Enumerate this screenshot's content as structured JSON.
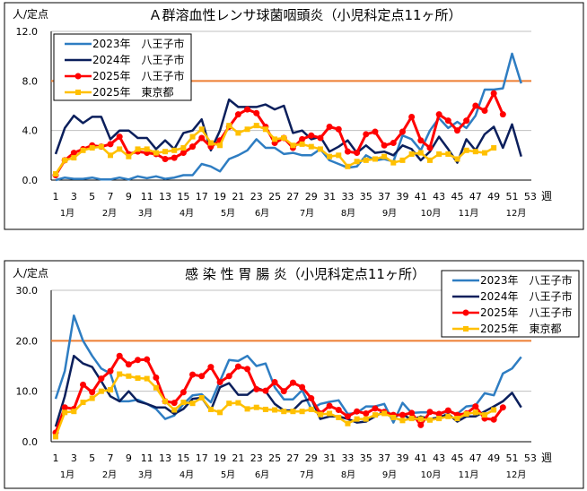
{
  "colors": {
    "s2023": "#2e7dc2",
    "s2024": "#0b1f5c",
    "s2025": "#ff0000",
    "tokyo": "#ffc000",
    "threshold": "#ed7d31",
    "grid": "#c0c0c0"
  },
  "chart_data": [
    {
      "type": "line",
      "title": "Ａ群溶血性レンサ球菌咽頭炎（小児科定点11ヶ所）",
      "ylabel": "人/定点",
      "xlabel": "週",
      "ylim": [
        0,
        12
      ],
      "yticks": [
        "0.0",
        "4.0",
        "8.0",
        "12.0"
      ],
      "xticks": [
        1,
        3,
        5,
        7,
        9,
        11,
        13,
        15,
        17,
        19,
        21,
        23,
        25,
        27,
        29,
        31,
        33,
        35,
        37,
        39,
        41,
        43,
        45,
        47,
        49,
        51,
        53
      ],
      "months": [
        "1月",
        "2月",
        "3月",
        "4月",
        "5月",
        "6月",
        "7月",
        "8月",
        "9月",
        "10月",
        "11月",
        "12月"
      ],
      "threshold": 8.0,
      "grid": true,
      "legend": "top-left",
      "series": [
        {
          "name": "2023年　八王子市",
          "key": "s2023",
          "marker": "none",
          "values": [
            0.0,
            0.2,
            0.1,
            0.1,
            0.2,
            0.05,
            0.05,
            0.2,
            0.05,
            0.3,
            0.15,
            0.3,
            0.1,
            0.2,
            0.4,
            0.4,
            1.3,
            1.1,
            0.7,
            1.7,
            2.0,
            2.4,
            3.3,
            2.6,
            2.6,
            2.1,
            2.2,
            2.0,
            2.0,
            2.5,
            1.6,
            1.3,
            1.0,
            1.1,
            2.0,
            1.6,
            1.7,
            1.5,
            3.6,
            3.3,
            2.4,
            4.0,
            5.0,
            4.2,
            4.7,
            4.2,
            5.2,
            7.3,
            7.3,
            7.4,
            10.2,
            7.8
          ]
        },
        {
          "name": "2024年　八王子市",
          "key": "s2024",
          "marker": "none",
          "values": [
            2.1,
            4.2,
            5.2,
            4.6,
            5.1,
            5.1,
            3.3,
            4.0,
            4.0,
            3.4,
            3.4,
            2.5,
            3.2,
            2.5,
            3.8,
            4.0,
            4.9,
            2.4,
            4.0,
            6.5,
            5.9,
            5.9,
            5.9,
            6.1,
            5.7,
            6.0,
            3.8,
            4.0,
            3.3,
            3.5,
            2.3,
            2.7,
            3.2,
            2.2,
            2.8,
            2.2,
            2.3,
            2.0,
            2.8,
            2.5,
            1.6,
            2.3,
            3.5,
            2.5,
            1.4,
            3.3,
            2.4,
            3.7,
            4.3,
            2.6,
            4.5,
            1.9
          ]
        },
        {
          "name": "2025年　八王子市",
          "key": "s2025",
          "marker": "circle",
          "values": [
            0.4,
            1.6,
            2.2,
            2.5,
            2.8,
            2.7,
            2.9,
            3.5,
            2.1,
            2.3,
            2.2,
            2.1,
            1.7,
            1.8,
            2.2,
            2.7,
            3.4,
            2.7,
            3.2,
            4.3,
            5.3,
            5.7,
            5.4,
            4.3,
            3.0,
            3.4,
            2.6,
            3.3,
            3.6,
            3.4,
            4.3,
            4.1,
            2.3,
            2.2,
            3.7,
            3.9,
            2.8,
            3.0,
            3.9,
            5.1,
            3.2,
            2.6,
            5.3,
            4.8,
            4.0,
            4.8,
            6.0,
            5.6,
            7.0,
            5.3
          ]
        },
        {
          "name": "2025年　東京都",
          "key": "tokyo",
          "marker": "square",
          "values": [
            0.5,
            1.6,
            1.8,
            2.4,
            2.6,
            2.7,
            2.0,
            2.5,
            1.9,
            2.5,
            2.5,
            2.2,
            2.3,
            2.4,
            2.6,
            3.5,
            4.1,
            3.0,
            2.8,
            4.4,
            3.8,
            4.1,
            4.4,
            4.1,
            3.3,
            3.4,
            2.8,
            2.9,
            2.7,
            2.5,
            1.9,
            2.0,
            1.1,
            1.5,
            1.6,
            1.7,
            1.9,
            1.4,
            1.6,
            2.1,
            2.2,
            1.6,
            2.1,
            2.1,
            1.7,
            2.4,
            2.3,
            2.2,
            2.6
          ]
        }
      ]
    },
    {
      "type": "line",
      "title": "感 染 性 胃 腸 炎（小児科定点11ヶ所）",
      "ylabel": "人/定点",
      "xlabel": "週",
      "ylim": [
        0,
        30
      ],
      "yticks": [
        "0.0",
        "10.0",
        "20.0",
        "30.0"
      ],
      "xticks": [
        1,
        3,
        5,
        7,
        9,
        11,
        13,
        15,
        17,
        19,
        21,
        23,
        25,
        27,
        29,
        31,
        33,
        35,
        37,
        39,
        41,
        43,
        45,
        47,
        49,
        51,
        53
      ],
      "months": [
        "1月",
        "2月",
        "3月",
        "4月",
        "5月",
        "6月",
        "7月",
        "8月",
        "9月",
        "10月",
        "11月",
        "12月"
      ],
      "threshold": 20.0,
      "grid": true,
      "legend": "top-right",
      "series": [
        {
          "name": "2023年　八王子市",
          "key": "s2023",
          "marker": "none",
          "values": [
            8.5,
            14,
            25,
            20,
            17,
            14.5,
            13.5,
            8,
            8,
            8.3,
            7.5,
            6.5,
            4.5,
            5.2,
            7.5,
            9.2,
            9.4,
            7.8,
            12,
            16.2,
            16,
            17,
            15,
            15.5,
            10.8,
            8.4,
            8.4,
            10.2,
            6.5,
            7.5,
            7.9,
            8.2,
            5.5,
            5.7,
            7.0,
            7.0,
            7.5,
            3.8,
            7.7,
            5.7,
            5.8,
            5.8,
            5.5,
            6.0,
            5.5,
            7.0,
            7.2,
            9.6,
            9.2,
            13.5,
            14.5,
            16.8
          ]
        },
        {
          "name": "2024年　八王子市",
          "key": "s2024",
          "marker": "none",
          "values": [
            3,
            9,
            17,
            15.5,
            14.8,
            12,
            9,
            8,
            10,
            8,
            7.5,
            6.8,
            6.8,
            5.5,
            6.5,
            8.5,
            8.7,
            6.2,
            10.8,
            11.6,
            9.3,
            9.3,
            10.7,
            10,
            7.5,
            6.2,
            6.2,
            8,
            8.5,
            4.5,
            5.0,
            5.0,
            4.5,
            3.8,
            4.0,
            5.0,
            6.0,
            5.0,
            5.5,
            4.3,
            5.0,
            4.5,
            4.8,
            5.5,
            4.0,
            5.0,
            5.0,
            6.0,
            7.0,
            8.0,
            9.7,
            6.8
          ]
        },
        {
          "name": "2025年　八王子市",
          "key": "s2025",
          "marker": "circle",
          "values": [
            1.8,
            6.8,
            6.5,
            11.3,
            9.8,
            12.5,
            14,
            17,
            15.3,
            16.2,
            16.3,
            12.7,
            8,
            7.7,
            9.8,
            13.3,
            13,
            14.8,
            11.8,
            13,
            14.9,
            14.4,
            10.4,
            10.1,
            11.8,
            10,
            11.7,
            10.8,
            8.6,
            5.6,
            7.1,
            6.3,
            5.0,
            6.0,
            5.6,
            6.6,
            5.9,
            5.3,
            5.3,
            5.7,
            3.3,
            5.9,
            5.5,
            6.2,
            5.3,
            5.6,
            7.0,
            4.6,
            4.4,
            6.8
          ]
        },
        {
          "name": "2025年　東京都",
          "key": "tokyo",
          "marker": "square",
          "values": [
            1,
            5.8,
            6,
            7.8,
            8.6,
            10,
            10.3,
            13.4,
            13,
            12.6,
            12.5,
            10.7,
            8,
            6.3,
            7.8,
            7.6,
            8.7,
            6.4,
            5.8,
            7.6,
            7.7,
            6.5,
            6.8,
            6.4,
            6.3,
            6.0,
            6.0,
            6.0,
            6.4,
            5.4,
            5.6,
            4.8,
            3.6,
            4.5,
            4.5,
            5.3,
            5.6,
            4.8,
            4.2,
            4.6,
            4.5,
            4.3,
            4.6,
            5.0,
            4.6,
            5.5,
            5.8,
            5.3,
            6.3
          ]
        }
      ]
    }
  ]
}
